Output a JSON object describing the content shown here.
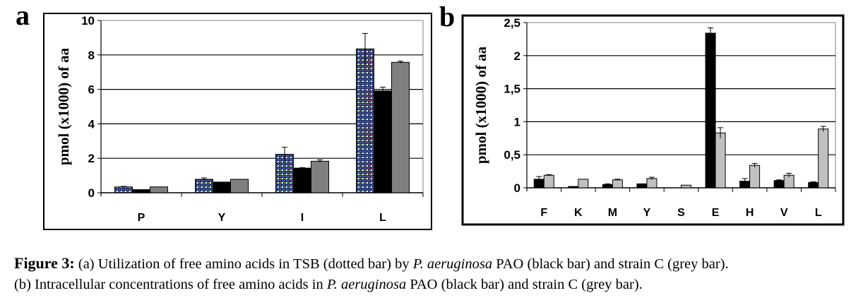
{
  "figure": {
    "panel_a_letter": "a",
    "panel_b_letter": "b",
    "caption": {
      "label": "Figure 3:",
      "line1_part1": " (a) Utilization of free amino acids in TSB (dotted bar) by ",
      "line1_italic": "P. aeruginosa",
      "line1_part2": " PAO (black bar) and strain C (grey bar).",
      "line2_part1": "(b) Intracellular concentrations of free amino acids in ",
      "line2_italic": "P. aeruginosa",
      "line2_part2": " PAO (black bar) and strain C (grey bar)."
    }
  },
  "colors": {
    "black_bar": "#000000",
    "grey_bar_a": "#808080",
    "grey_bar_b": "#c0c0c0",
    "dotted_bar_base": "#1a2a6a"
  },
  "chart_data": [
    {
      "type": "bar",
      "panel": "a",
      "title": "",
      "xlabel": "",
      "ylabel": "pmol (x1000) of aa",
      "categories": [
        "P",
        "Y",
        "I",
        "L"
      ],
      "ylim": [
        0,
        10
      ],
      "yticks": [
        0,
        2,
        4,
        6,
        8,
        10
      ],
      "ytick_labels": [
        "0",
        "2",
        "4",
        "6",
        "8",
        "10"
      ],
      "grid": true,
      "legend": "none",
      "series": [
        {
          "name": "TSB (dotted bar)",
          "style": "dotted",
          "values": [
            0.34,
            0.78,
            2.23,
            8.35
          ],
          "errors": [
            0.03,
            0.08,
            0.41,
            0.9
          ]
        },
        {
          "name": "P. aeruginosa PAO (black bar)",
          "style": "black",
          "values": [
            0.18,
            0.62,
            1.43,
            5.91
          ],
          "errors": [
            0,
            0,
            0.03,
            0.22
          ]
        },
        {
          "name": "strain C (grey bar)",
          "style": "grey",
          "values": [
            0.34,
            0.78,
            1.83,
            7.57
          ],
          "errors": [
            0,
            0,
            0.08,
            0.07
          ]
        }
      ]
    },
    {
      "type": "bar",
      "panel": "b",
      "title": "",
      "xlabel": "",
      "ylabel": "pmol (x1000) of aa",
      "categories": [
        "F",
        "K",
        "M",
        "Y",
        "S",
        "E",
        "H",
        "V",
        "L"
      ],
      "ylim": [
        0,
        2.5
      ],
      "yticks": [
        0,
        0.5,
        1,
        1.5,
        2,
        2.5
      ],
      "ytick_labels": [
        "0",
        "0,5",
        "1",
        "1,5",
        "2",
        "2,5"
      ],
      "grid": true,
      "legend": "none",
      "series": [
        {
          "name": "P. aeruginosa PAO (black bar)",
          "style": "black",
          "values": [
            0.13,
            0.02,
            0.05,
            0.06,
            0,
            2.34,
            0.1,
            0.11,
            0.08
          ],
          "errors": [
            0.04,
            0,
            0.01,
            0,
            0,
            0.08,
            0.04,
            0.01,
            0.01
          ]
        },
        {
          "name": "strain C (grey bar)",
          "style": "lightgrey",
          "values": [
            0.19,
            0.13,
            0.12,
            0.14,
            0.04,
            0.83,
            0.34,
            0.19,
            0.89
          ],
          "errors": [
            0.01,
            0,
            0.01,
            0.02,
            0,
            0.08,
            0.03,
            0.03,
            0.04
          ]
        }
      ]
    }
  ]
}
